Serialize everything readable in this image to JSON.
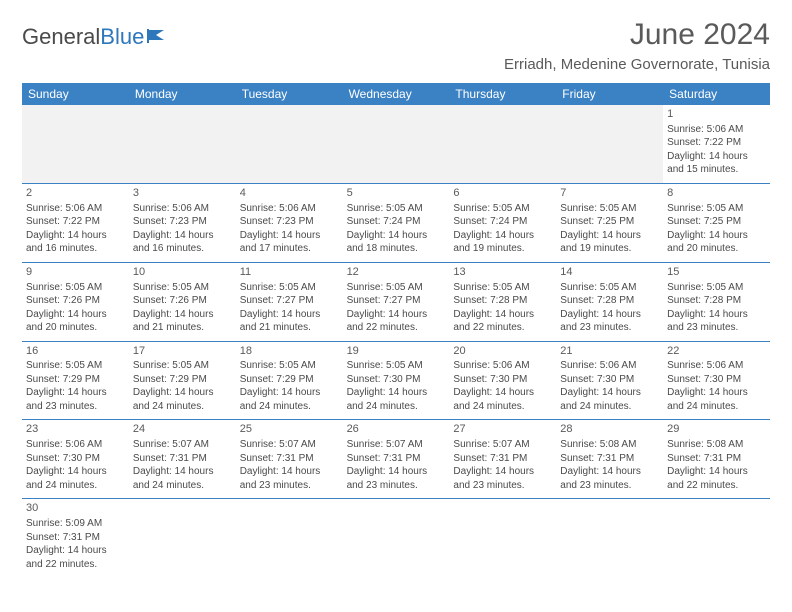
{
  "logo": {
    "text1": "General",
    "text2": "Blue"
  },
  "title": "June 2024",
  "location": "Erriadh, Medenine Governorate, Tunisia",
  "weekday_header_bg": "#3b82c4",
  "weekday_header_fg": "#ffffff",
  "rule_color": "#3b82c4",
  "blank_bg": "#f2f2f2",
  "weekdays": [
    "Sunday",
    "Monday",
    "Tuesday",
    "Wednesday",
    "Thursday",
    "Friday",
    "Saturday"
  ],
  "weeks": [
    [
      null,
      null,
      null,
      null,
      null,
      null,
      {
        "d": "1",
        "rise": "Sunrise: 5:06 AM",
        "set": "Sunset: 7:22 PM",
        "dl1": "Daylight: 14 hours",
        "dl2": "and 15 minutes."
      }
    ],
    [
      {
        "d": "2",
        "rise": "Sunrise: 5:06 AM",
        "set": "Sunset: 7:22 PM",
        "dl1": "Daylight: 14 hours",
        "dl2": "and 16 minutes."
      },
      {
        "d": "3",
        "rise": "Sunrise: 5:06 AM",
        "set": "Sunset: 7:23 PM",
        "dl1": "Daylight: 14 hours",
        "dl2": "and 16 minutes."
      },
      {
        "d": "4",
        "rise": "Sunrise: 5:06 AM",
        "set": "Sunset: 7:23 PM",
        "dl1": "Daylight: 14 hours",
        "dl2": "and 17 minutes."
      },
      {
        "d": "5",
        "rise": "Sunrise: 5:05 AM",
        "set": "Sunset: 7:24 PM",
        "dl1": "Daylight: 14 hours",
        "dl2": "and 18 minutes."
      },
      {
        "d": "6",
        "rise": "Sunrise: 5:05 AM",
        "set": "Sunset: 7:24 PM",
        "dl1": "Daylight: 14 hours",
        "dl2": "and 19 minutes."
      },
      {
        "d": "7",
        "rise": "Sunrise: 5:05 AM",
        "set": "Sunset: 7:25 PM",
        "dl1": "Daylight: 14 hours",
        "dl2": "and 19 minutes."
      },
      {
        "d": "8",
        "rise": "Sunrise: 5:05 AM",
        "set": "Sunset: 7:25 PM",
        "dl1": "Daylight: 14 hours",
        "dl2": "and 20 minutes."
      }
    ],
    [
      {
        "d": "9",
        "rise": "Sunrise: 5:05 AM",
        "set": "Sunset: 7:26 PM",
        "dl1": "Daylight: 14 hours",
        "dl2": "and 20 minutes."
      },
      {
        "d": "10",
        "rise": "Sunrise: 5:05 AM",
        "set": "Sunset: 7:26 PM",
        "dl1": "Daylight: 14 hours",
        "dl2": "and 21 minutes."
      },
      {
        "d": "11",
        "rise": "Sunrise: 5:05 AM",
        "set": "Sunset: 7:27 PM",
        "dl1": "Daylight: 14 hours",
        "dl2": "and 21 minutes."
      },
      {
        "d": "12",
        "rise": "Sunrise: 5:05 AM",
        "set": "Sunset: 7:27 PM",
        "dl1": "Daylight: 14 hours",
        "dl2": "and 22 minutes."
      },
      {
        "d": "13",
        "rise": "Sunrise: 5:05 AM",
        "set": "Sunset: 7:28 PM",
        "dl1": "Daylight: 14 hours",
        "dl2": "and 22 minutes."
      },
      {
        "d": "14",
        "rise": "Sunrise: 5:05 AM",
        "set": "Sunset: 7:28 PM",
        "dl1": "Daylight: 14 hours",
        "dl2": "and 23 minutes."
      },
      {
        "d": "15",
        "rise": "Sunrise: 5:05 AM",
        "set": "Sunset: 7:28 PM",
        "dl1": "Daylight: 14 hours",
        "dl2": "and 23 minutes."
      }
    ],
    [
      {
        "d": "16",
        "rise": "Sunrise: 5:05 AM",
        "set": "Sunset: 7:29 PM",
        "dl1": "Daylight: 14 hours",
        "dl2": "and 23 minutes."
      },
      {
        "d": "17",
        "rise": "Sunrise: 5:05 AM",
        "set": "Sunset: 7:29 PM",
        "dl1": "Daylight: 14 hours",
        "dl2": "and 24 minutes."
      },
      {
        "d": "18",
        "rise": "Sunrise: 5:05 AM",
        "set": "Sunset: 7:29 PM",
        "dl1": "Daylight: 14 hours",
        "dl2": "and 24 minutes."
      },
      {
        "d": "19",
        "rise": "Sunrise: 5:05 AM",
        "set": "Sunset: 7:30 PM",
        "dl1": "Daylight: 14 hours",
        "dl2": "and 24 minutes."
      },
      {
        "d": "20",
        "rise": "Sunrise: 5:06 AM",
        "set": "Sunset: 7:30 PM",
        "dl1": "Daylight: 14 hours",
        "dl2": "and 24 minutes."
      },
      {
        "d": "21",
        "rise": "Sunrise: 5:06 AM",
        "set": "Sunset: 7:30 PM",
        "dl1": "Daylight: 14 hours",
        "dl2": "and 24 minutes."
      },
      {
        "d": "22",
        "rise": "Sunrise: 5:06 AM",
        "set": "Sunset: 7:30 PM",
        "dl1": "Daylight: 14 hours",
        "dl2": "and 24 minutes."
      }
    ],
    [
      {
        "d": "23",
        "rise": "Sunrise: 5:06 AM",
        "set": "Sunset: 7:30 PM",
        "dl1": "Daylight: 14 hours",
        "dl2": "and 24 minutes."
      },
      {
        "d": "24",
        "rise": "Sunrise: 5:07 AM",
        "set": "Sunset: 7:31 PM",
        "dl1": "Daylight: 14 hours",
        "dl2": "and 24 minutes."
      },
      {
        "d": "25",
        "rise": "Sunrise: 5:07 AM",
        "set": "Sunset: 7:31 PM",
        "dl1": "Daylight: 14 hours",
        "dl2": "and 23 minutes."
      },
      {
        "d": "26",
        "rise": "Sunrise: 5:07 AM",
        "set": "Sunset: 7:31 PM",
        "dl1": "Daylight: 14 hours",
        "dl2": "and 23 minutes."
      },
      {
        "d": "27",
        "rise": "Sunrise: 5:07 AM",
        "set": "Sunset: 7:31 PM",
        "dl1": "Daylight: 14 hours",
        "dl2": "and 23 minutes."
      },
      {
        "d": "28",
        "rise": "Sunrise: 5:08 AM",
        "set": "Sunset: 7:31 PM",
        "dl1": "Daylight: 14 hours",
        "dl2": "and 23 minutes."
      },
      {
        "d": "29",
        "rise": "Sunrise: 5:08 AM",
        "set": "Sunset: 7:31 PM",
        "dl1": "Daylight: 14 hours",
        "dl2": "and 22 minutes."
      }
    ],
    [
      {
        "d": "30",
        "rise": "Sunrise: 5:09 AM",
        "set": "Sunset: 7:31 PM",
        "dl1": "Daylight: 14 hours",
        "dl2": "and 22 minutes."
      },
      null,
      null,
      null,
      null,
      null,
      null
    ]
  ]
}
